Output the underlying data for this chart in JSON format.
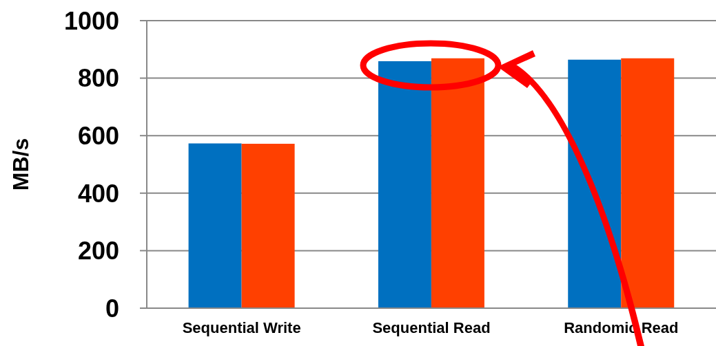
{
  "chart_data": {
    "type": "bar",
    "ylabel": "MB/s",
    "categories": [
      "Sequential Write",
      "Sequential Read",
      "Randomic Read"
    ],
    "series": [
      {
        "color": "#0070c0",
        "values": [
          573,
          859,
          864
        ]
      },
      {
        "color": "#ff4000",
        "values": [
          572,
          869,
          869
        ]
      }
    ],
    "ylim": [
      0,
      1000
    ],
    "yticks": [
      0,
      200,
      400,
      600,
      800,
      1000
    ],
    "grid": "y"
  }
}
